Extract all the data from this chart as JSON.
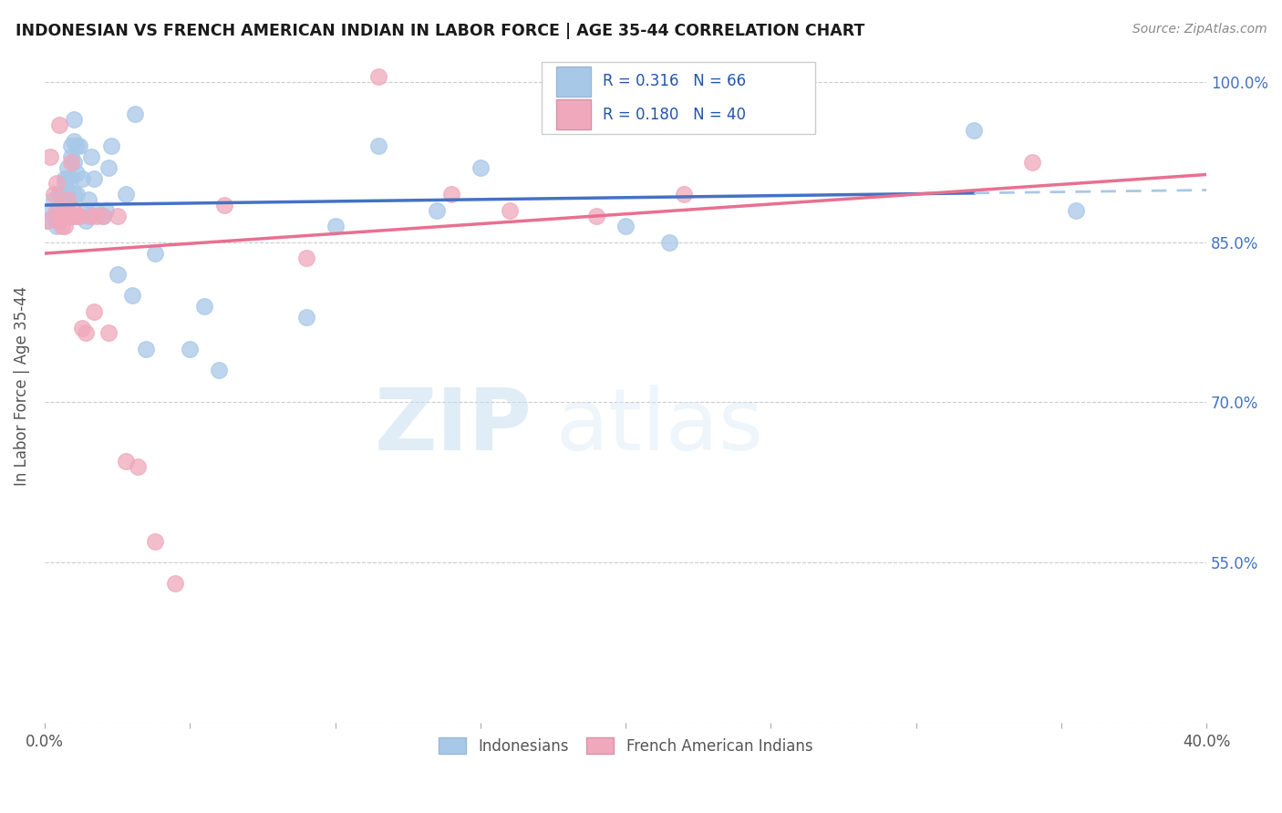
{
  "title": "INDONESIAN VS FRENCH AMERICAN INDIAN IN LABOR FORCE | AGE 35-44 CORRELATION CHART",
  "source": "Source: ZipAtlas.com",
  "ylabel": "In Labor Force | Age 35-44",
  "x_range": [
    0.0,
    0.4
  ],
  "y_range": [
    0.4,
    1.03
  ],
  "blue_color": "#a8c8e8",
  "pink_color": "#f0a8bc",
  "trend_blue": "#4472c4",
  "trend_pink": "#e87090",
  "dashed_blue": "#a8c8e8",
  "watermark_zip": "ZIP",
  "watermark_atlas": "atlas",
  "blue_points_x": [
    0.001,
    0.002,
    0.003,
    0.003,
    0.004,
    0.004,
    0.004,
    0.005,
    0.005,
    0.005,
    0.005,
    0.006,
    0.006,
    0.006,
    0.006,
    0.007,
    0.007,
    0.007,
    0.007,
    0.008,
    0.008,
    0.008,
    0.008,
    0.009,
    0.009,
    0.009,
    0.01,
    0.01,
    0.01,
    0.01,
    0.01,
    0.011,
    0.011,
    0.011,
    0.012,
    0.013,
    0.014,
    0.014,
    0.015,
    0.015,
    0.016,
    0.017,
    0.018,
    0.02,
    0.021,
    0.022,
    0.023,
    0.025,
    0.028,
    0.03,
    0.031,
    0.035,
    0.038,
    0.05,
    0.055,
    0.06,
    0.09,
    0.1,
    0.115,
    0.135,
    0.15,
    0.2,
    0.215,
    0.25,
    0.32,
    0.355
  ],
  "blue_points_y": [
    0.87,
    0.88,
    0.89,
    0.875,
    0.865,
    0.88,
    0.87,
    0.895,
    0.88,
    0.875,
    0.87,
    0.895,
    0.89,
    0.885,
    0.875,
    0.91,
    0.905,
    0.895,
    0.875,
    0.92,
    0.91,
    0.895,
    0.88,
    0.94,
    0.93,
    0.91,
    0.965,
    0.945,
    0.925,
    0.895,
    0.875,
    0.94,
    0.915,
    0.895,
    0.94,
    0.91,
    0.88,
    0.87,
    0.89,
    0.875,
    0.93,
    0.91,
    0.88,
    0.875,
    0.88,
    0.92,
    0.94,
    0.82,
    0.895,
    0.8,
    0.97,
    0.75,
    0.84,
    0.75,
    0.79,
    0.73,
    0.78,
    0.865,
    0.94,
    0.88,
    0.92,
    0.865,
    0.85,
    1.0,
    0.955,
    0.88
  ],
  "pink_points_x": [
    0.001,
    0.002,
    0.003,
    0.004,
    0.004,
    0.005,
    0.005,
    0.005,
    0.006,
    0.006,
    0.007,
    0.007,
    0.007,
    0.008,
    0.008,
    0.009,
    0.009,
    0.01,
    0.011,
    0.012,
    0.013,
    0.014,
    0.016,
    0.017,
    0.018,
    0.02,
    0.022,
    0.025,
    0.028,
    0.032,
    0.038,
    0.045,
    0.062,
    0.09,
    0.115,
    0.14,
    0.16,
    0.19,
    0.22,
    0.34
  ],
  "pink_points_y": [
    0.87,
    0.93,
    0.895,
    0.88,
    0.905,
    0.96,
    0.875,
    0.87,
    0.875,
    0.865,
    0.88,
    0.875,
    0.865,
    0.89,
    0.875,
    0.925,
    0.875,
    0.88,
    0.875,
    0.875,
    0.77,
    0.765,
    0.875,
    0.785,
    0.875,
    0.875,
    0.765,
    0.875,
    0.645,
    0.64,
    0.57,
    0.53,
    0.885,
    0.835,
    1.005,
    0.895,
    0.88,
    0.875,
    0.895,
    0.925
  ],
  "y_tick_vals": [
    0.4,
    0.55,
    0.7,
    0.85,
    1.0
  ],
  "y_tick_labels": [
    "",
    "55.0%",
    "70.0%",
    "85.0%",
    "100.0%"
  ],
  "x_tick_vals": [
    0.0,
    0.05,
    0.1,
    0.15,
    0.2,
    0.25,
    0.3,
    0.35,
    0.4
  ],
  "x_tick_labels": [
    "0.0%",
    "",
    "",
    "",
    "",
    "",
    "",
    "",
    "40.0%"
  ]
}
